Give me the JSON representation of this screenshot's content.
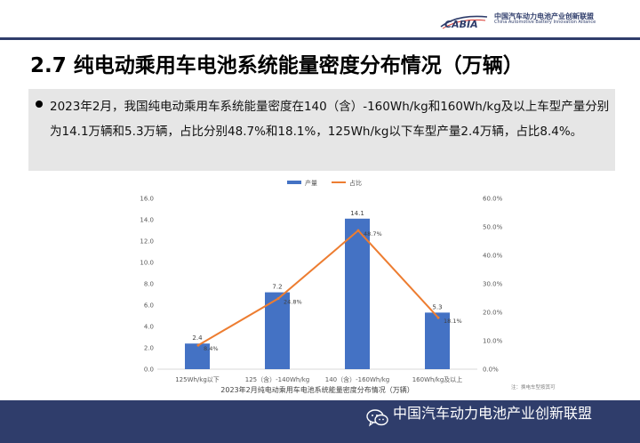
{
  "header": {
    "logo_mark": "CABIA",
    "org_cn": "中国汽车动力电池产业创新联盟",
    "org_en": "China Automotive Battery Innovation Alliance"
  },
  "title": "2.7 纯电动乘用车电池系统能量密度分布情况（万辆）",
  "summary": "2023年2月，我国纯电动乘用车系统能量密度在140（含）-160Wh/kg和160Wh/kg及以上车型产量分别为14.1万辆和5.3万辆，占比分别48.7%和18.1%，125Wh/kg以下车型产量2.4万辆，占比8.4%。",
  "chart_data": {
    "type": "bar",
    "categories": [
      "125Wh/kg以下",
      "125（含）-140Wh/kg",
      "140（含）-160Wh/kg",
      "160Wh/kg及以上"
    ],
    "series": [
      {
        "name": "产量",
        "kind": "bar",
        "axis": "left",
        "color": "#4472c4",
        "values": [
          2.4,
          7.2,
          14.1,
          5.3
        ],
        "labels": [
          "2.4",
          "7.2",
          "14.1",
          "5.3"
        ]
      },
      {
        "name": "占比",
        "kind": "line",
        "axis": "right",
        "color": "#ed7d31",
        "values": [
          8.4,
          24.8,
          48.7,
          18.1
        ],
        "labels": [
          "8.4%",
          "24.8%",
          "48.7%",
          "18.1%"
        ]
      }
    ],
    "ylim": [
      0,
      16
    ],
    "yticks": [
      "0.0",
      "2.0",
      "4.0",
      "6.0",
      "8.0",
      "10.0",
      "12.0",
      "14.0",
      "16.0"
    ],
    "y2lim": [
      0,
      60
    ],
    "y2ticks": [
      "0.0%",
      "10.0%",
      "20.0%",
      "30.0%",
      "40.0%",
      "50.0%",
      "60.0%"
    ],
    "caption": "2023年2月纯电动乘用车电池系统能量密度分布情况（万辆）",
    "note": "注：换电车型按其可更换电池包的最低能量密度统计",
    "legend_position": "top",
    "grid": false
  },
  "footer": {
    "text": "中国汽车动力电池产业创新联盟",
    "icon": "wechat-icon"
  }
}
